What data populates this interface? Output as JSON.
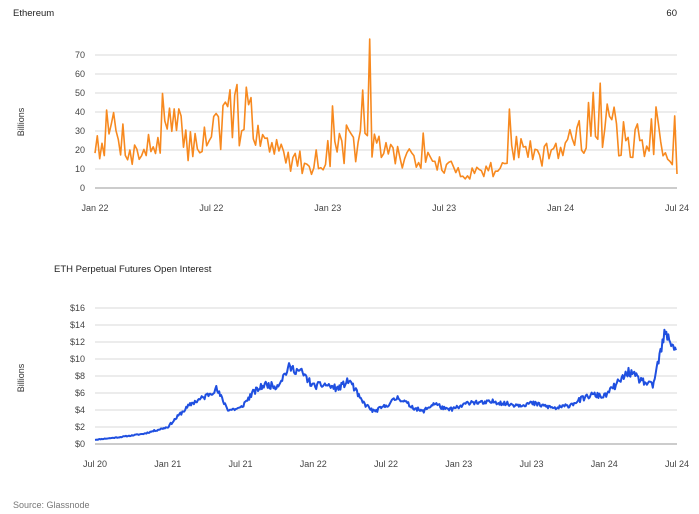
{
  "chart_data": [
    {
      "type": "line",
      "title": "Ethereum",
      "corner_label": "60",
      "ylabel": "Billions",
      "x_ticks": [
        "Jan 22",
        "Jul 22",
        "Jan 23",
        "Jul 23",
        "Jan 24",
        "Jul 24"
      ],
      "y_ticks": [
        "0",
        "10",
        "20",
        "30",
        "40",
        "50",
        "60",
        "70"
      ],
      "ylim": [
        0,
        80
      ],
      "xlim": [
        "2022-01-01",
        "2024-07-01"
      ],
      "grid": true,
      "color": "#f7891f",
      "series": [
        {
          "x": [
            "2022-01",
            "2022-02",
            "2022-03",
            "2022-04",
            "2022-05",
            "2022-06",
            "2022-07",
            "2022-08",
            "2022-09",
            "2022-10",
            "2022-11",
            "2022-12",
            "2023-01",
            "2023-02",
            "2023-03",
            "2023-04",
            "2023-05",
            "2023-06",
            "2023-07",
            "2023-08",
            "2023-09",
            "2023-10",
            "2023-11",
            "2023-12",
            "2024-01",
            "2024-02",
            "2024-03",
            "2024-04",
            "2024-05",
            "2024-06",
            "2024-07"
          ],
          "values": [
            24,
            32,
            18,
            22,
            33,
            22,
            30,
            36,
            42,
            20,
            16,
            12,
            18,
            24,
            22,
            20,
            16,
            15,
            11,
            8,
            9,
            12,
            22,
            20,
            24,
            28,
            40,
            26,
            24,
            30,
            12
          ]
        }
      ]
    },
    {
      "type": "line",
      "title": "ETH Perpetual Futures Open Interest",
      "ylabel": "Billions",
      "x_ticks": [
        "Jul 20",
        "Jan 21",
        "Jul 21",
        "Jan 22",
        "Jul 22",
        "Jan 23",
        "Jul 23",
        "Jan 24",
        "Jul 24"
      ],
      "y_ticks": [
        "$0",
        "$2",
        "$4",
        "$6",
        "$8",
        "$10",
        "$12",
        "$14",
        "$16"
      ],
      "ylim": [
        0,
        16
      ],
      "xlim": [
        "2020-07-01",
        "2024-07-01"
      ],
      "grid": true,
      "color": "#1f4fe0",
      "series": [
        {
          "x": [
            "2020-07",
            "2020-09",
            "2020-11",
            "2021-01",
            "2021-02",
            "2021-03",
            "2021-04",
            "2021-05",
            "2021-06",
            "2021-07",
            "2021-08",
            "2021-09",
            "2021-10",
            "2021-11",
            "2021-12",
            "2022-01",
            "2022-02",
            "2022-03",
            "2022-04",
            "2022-05",
            "2022-06",
            "2022-07",
            "2022-08",
            "2022-09",
            "2022-10",
            "2022-11",
            "2022-12",
            "2023-01",
            "2023-02",
            "2023-03",
            "2023-04",
            "2023-05",
            "2023-06",
            "2023-07",
            "2023-08",
            "2023-09",
            "2023-10",
            "2023-11",
            "2023-12",
            "2024-01",
            "2024-02",
            "2024-03",
            "2024-04",
            "2024-05",
            "2024-06",
            "2024-07"
          ],
          "values": [
            0.5,
            0.8,
            1.2,
            2.0,
            3.5,
            4.8,
            5.5,
            6.5,
            4.0,
            4.2,
            6.0,
            7.0,
            6.8,
            9.0,
            8.5,
            6.8,
            7.0,
            6.5,
            7.5,
            5.0,
            3.8,
            4.5,
            5.5,
            4.5,
            3.8,
            4.8,
            4.0,
            4.3,
            5.0,
            4.8,
            5.0,
            4.7,
            4.6,
            4.8,
            4.5,
            4.2,
            4.5,
            5.2,
            5.8,
            5.6,
            7.0,
            8.5,
            7.5,
            6.8,
            13.0,
            11.0
          ]
        }
      ]
    }
  ],
  "footer": {
    "source": "Source: Glassnode"
  }
}
